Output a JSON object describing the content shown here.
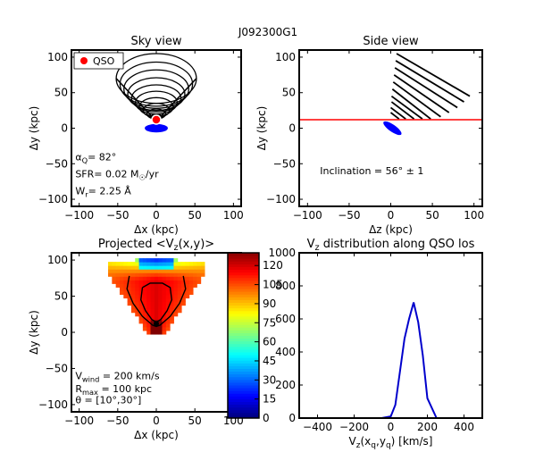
{
  "figure": {
    "suptitle": "J092300G1"
  },
  "chart_data": [
    {
      "id": "sky",
      "type": "diagram",
      "title": "Sky view",
      "xlabel": "Δx (kpc)",
      "ylabel": "Δy (kpc)",
      "xlim": [
        -110,
        110
      ],
      "ylim": [
        -110,
        110
      ],
      "xticks": [
        "−100",
        "−50",
        "0",
        "50",
        "100"
      ],
      "yticks": [
        "100",
        "50",
        "0",
        "−50",
        "−100"
      ],
      "legend": {
        "label": "QSO",
        "placement": "top-left"
      },
      "qso": [
        0,
        12
      ],
      "ellipses": [
        {
          "cx": 0,
          "cy": 70,
          "rx": 52,
          "ry": 35
        },
        {
          "cx": 0,
          "cy": 62,
          "rx": 47,
          "ry": 31
        },
        {
          "cx": 0,
          "cy": 55,
          "rx": 42,
          "ry": 27
        },
        {
          "cx": 0,
          "cy": 48,
          "rx": 37,
          "ry": 23
        },
        {
          "cx": 0,
          "cy": 42,
          "rx": 32,
          "ry": 19
        },
        {
          "cx": 0,
          "cy": 36,
          "rx": 27,
          "ry": 16
        },
        {
          "cx": 0,
          "cy": 30,
          "rx": 22,
          "ry": 13
        },
        {
          "cx": 0,
          "cy": 25,
          "rx": 17,
          "ry": 10
        },
        {
          "cx": 0,
          "cy": 20,
          "rx": 12,
          "ry": 7
        },
        {
          "cx": 0,
          "cy": 16,
          "rx": 7,
          "ry": 4
        }
      ],
      "cone_lines": [
        [
          [
            -52,
            70
          ],
          [
            0,
            10
          ]
        ],
        [
          [
            52,
            70
          ],
          [
            0,
            10
          ]
        ]
      ],
      "galaxy": {
        "cx": 0,
        "cy": 0,
        "rx": 15,
        "ry": 6,
        "color": "#0000ff"
      },
      "annotations": [
        {
          "text": "α_Q=  82°",
          "at": [
            -105,
            -45
          ]
        },
        {
          "text": "SFR= 0.02 M_☉/yr",
          "at": [
            -105,
            -69
          ]
        },
        {
          "text": "W_r= 2.25 Å",
          "at": [
            -105,
            -93
          ]
        }
      ]
    },
    {
      "id": "side",
      "type": "diagram",
      "title": "Side view",
      "xlabel": "Δz (kpc)",
      "ylabel": "Δy (kpc)",
      "xlim": [
        -110,
        110
      ],
      "ylim": [
        -110,
        110
      ],
      "xticks": [
        "−100",
        "−50",
        "0",
        "50",
        "100"
      ],
      "yticks": [
        "100",
        "50",
        "0",
        "−50",
        "−100"
      ],
      "los_y": 12,
      "galaxy": {
        "cx": 2,
        "cy": 0,
        "rx": 13,
        "ry": 5,
        "angle_deg": -35,
        "color": "#0000ff"
      },
      "wind_lines": [
        [
          [
            7,
            105
          ],
          [
            95,
            45
          ]
        ],
        [
          [
            6,
            95
          ],
          [
            88,
            37
          ]
        ],
        [
          [
            5,
            85
          ],
          [
            80,
            29
          ]
        ],
        [
          [
            4,
            75
          ],
          [
            70,
            22
          ]
        ],
        [
          [
            3,
            65
          ],
          [
            60,
            16
          ]
        ],
        [
          [
            2,
            55
          ],
          [
            48,
            13
          ]
        ],
        [
          [
            1,
            45
          ],
          [
            38,
            13
          ]
        ],
        [
          [
            1,
            37
          ],
          [
            28,
            13
          ]
        ],
        [
          [
            0,
            29
          ],
          [
            18,
            13
          ]
        ],
        [
          [
            0,
            22
          ],
          [
            10,
            13
          ]
        ]
      ],
      "annotations": [
        {
          "text": "Inclination =  56°  ±  1",
          "at": [
            -85,
            -65
          ]
        }
      ]
    },
    {
      "id": "proj",
      "type": "heatmap",
      "title": "Projected  <V_z(x,y)>",
      "xlabel": "Δx (kpc)",
      "ylabel": "Δy (kpc)",
      "xlim": [
        -110,
        110
      ],
      "ylim": [
        -110,
        110
      ],
      "xticks": [
        "−100",
        "−50",
        "0",
        "50",
        "100"
      ],
      "yticks": [
        "100",
        "50",
        "0",
        "−50",
        "−100"
      ],
      "colorbar": {
        "vmin": 0,
        "vmax": 130,
        "ticks": [
          "120",
          "105",
          "90",
          "75",
          "60",
          "45",
          "30",
          "15",
          "0"
        ]
      },
      "annotations": [
        {
          "text": "V_wind = 200 km/s",
          "at": [
            -105,
            -65
          ]
        },
        {
          "text": "R_max = 100 kpc",
          "at": [
            -105,
            -83
          ]
        },
        {
          "text": "θ = [10°,30°]",
          "at": [
            -105,
            -98
          ]
        }
      ]
    },
    {
      "id": "dist",
      "type": "line",
      "title": "V_z distribution along QSO los",
      "xlabel": "V_z(x_q,y_q) [km/s]",
      "xlim": [
        -500,
        500
      ],
      "ylim": [
        0,
        1000
      ],
      "xticks": [
        "−400",
        "−200",
        "0",
        "200",
        "400"
      ],
      "yticks": [
        "1000",
        "800",
        "600",
        "400",
        "200",
        "0"
      ],
      "series": [
        {
          "color": "#0000cc",
          "x": [
            -100,
            -50,
            0,
            25,
            50,
            75,
            100,
            125,
            150,
            175,
            200,
            250,
            300
          ],
          "y": [
            0,
            0,
            10,
            80,
            280,
            480,
            600,
            700,
            580,
            380,
            120,
            0,
            0
          ]
        }
      ]
    }
  ]
}
